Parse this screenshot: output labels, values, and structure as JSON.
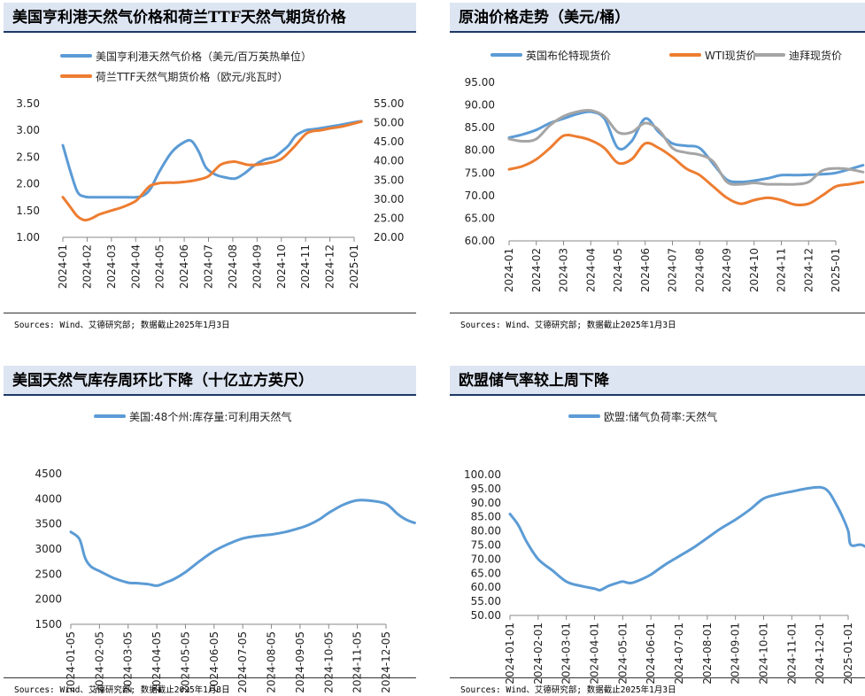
{
  "panels": [
    {
      "title": "美国亨利港天然气价格和荷兰TTF天然气期货价格",
      "source": "Sources: Wind、艾德研究部; 数据截止2025年1月3日"
    },
    {
      "title": "原油价格走势（美元/桶）",
      "source": "Sources: Wind、艾德研究部; 数据截止2025年1月3日"
    },
    {
      "title": "美国天然气库存周环比下降（十亿立方英尺）",
      "source": "Sources: Wind、艾德研究部; 数据截止2025年1月3日"
    },
    {
      "title": "欧盟储气率较上周下降",
      "source": "Sources: Wind、艾德研究部; 数据截止2025年1月3日"
    }
  ],
  "chart_data": [
    {
      "type": "line",
      "title": "美国亨利港天然气价格和荷兰TTF天然气期货价格",
      "categories": [
        "2024-01",
        "2024-02",
        "2024-03",
        "2024-04",
        "2024-05",
        "2024-06",
        "2024-07",
        "2024-08",
        "2024-09",
        "2024-10",
        "2024-11",
        "2024-12",
        "2025-01"
      ],
      "y_left": {
        "ylim": [
          1.0,
          3.5
        ],
        "ticks": [
          "1.00",
          "1.50",
          "2.00",
          "2.50",
          "3.00",
          "3.50"
        ]
      },
      "y_right": {
        "ylim": [
          20.0,
          55.0
        ],
        "ticks": [
          "20.00",
          "25.00",
          "30.00",
          "35.00",
          "40.00",
          "45.00",
          "50.00",
          "55.00"
        ]
      },
      "legend_position": "top-left",
      "series": [
        {
          "name": "美国亨利港天然气价格（美元/百万英热单位）",
          "axis": "left",
          "color": "#5b9bd5",
          "x": [
            0,
            0.3,
            0.6,
            0.9,
            1.2,
            1.5,
            2,
            2.5,
            3,
            3.3,
            3.6,
            4,
            4.5,
            5,
            5.3,
            5.6,
            5.9,
            6.3,
            6.7,
            7.1,
            7.5,
            7.9,
            8.3,
            8.7,
            9,
            9.3,
            9.6,
            10,
            10.3,
            10.6,
            11,
            11.4,
            12,
            12.3
          ],
          "values": [
            2.72,
            2.25,
            1.85,
            1.76,
            1.75,
            1.75,
            1.75,
            1.75,
            1.75,
            1.78,
            1.9,
            2.25,
            2.6,
            2.78,
            2.8,
            2.6,
            2.3,
            2.17,
            2.12,
            2.1,
            2.2,
            2.35,
            2.45,
            2.5,
            2.6,
            2.72,
            2.9,
            3.0,
            3.02,
            3.04,
            3.07,
            3.1,
            3.15,
            3.17
          ]
        },
        {
          "name": "荷兰TTF天然气期货价格（欧元/兆瓦时）",
          "axis": "right",
          "color": "#ed7d31",
          "x": [
            0,
            0.3,
            0.6,
            0.9,
            1.2,
            1.5,
            2,
            2.5,
            3,
            3.3,
            3.6,
            4,
            4.3,
            4.6,
            5,
            5.5,
            6,
            6.5,
            7,
            7.3,
            7.6,
            8,
            8.5,
            9,
            9.5,
            10,
            10.3,
            10.6,
            11,
            11.5,
            12,
            12.3
          ],
          "values": [
            30.5,
            28,
            25.5,
            24.5,
            25,
            26,
            27,
            28,
            29.5,
            31.5,
            33.5,
            34.2,
            34.3,
            34.3,
            34.5,
            35,
            36,
            39,
            39.8,
            39.5,
            39,
            39,
            39.5,
            40.5,
            43.5,
            47,
            47.8,
            48,
            48.5,
            49,
            49.8,
            50.3
          ]
        }
      ]
    },
    {
      "type": "line",
      "title": "原油价格走势（美元/桶）",
      "categories": [
        "2024-01",
        "2024-02",
        "2024-03",
        "2024-04",
        "2024-05",
        "2024-06",
        "2024-07",
        "2024-08",
        "2024-09",
        "2024-10",
        "2024-11",
        "2024-12",
        "2025-01"
      ],
      "ylim": [
        60.0,
        95.0
      ],
      "yticks": [
        "60.00",
        "65.00",
        "70.00",
        "75.00",
        "80.00",
        "85.00",
        "90.00",
        "95.00"
      ],
      "legend_position": "top",
      "series": [
        {
          "name": "英国布伦特现货价",
          "color": "#5b9bd5",
          "x": [
            0,
            0.5,
            1,
            1.5,
            2,
            2.5,
            3,
            3.5,
            4,
            4.5,
            5,
            5.5,
            6,
            6.5,
            7,
            7.5,
            8,
            8.5,
            9,
            9.5,
            10,
            10.5,
            11,
            11.5,
            12,
            12.5,
            13
          ],
          "values": [
            82.8,
            83.5,
            84.5,
            86,
            87,
            88,
            88.5,
            87,
            80.5,
            82,
            87,
            84,
            81.5,
            81,
            80.5,
            77,
            73.5,
            73,
            73.3,
            73.8,
            74.5,
            74.5,
            74.6,
            74.7,
            75,
            75.8,
            76.7
          ]
        },
        {
          "name": "WTI现货价",
          "color": "#ed7d31",
          "x": [
            0,
            0.5,
            1,
            1.5,
            2,
            2.5,
            3,
            3.5,
            4,
            4.5,
            5,
            5.5,
            6,
            6.5,
            7,
            7.5,
            8,
            8.5,
            9,
            9.5,
            10,
            10.5,
            11,
            11.5,
            12,
            12.5,
            13
          ],
          "values": [
            75.8,
            76.5,
            78,
            80.5,
            83.2,
            83,
            82.2,
            80.5,
            77.2,
            78,
            81.5,
            80.5,
            78.5,
            76,
            74.5,
            72,
            69.5,
            68.2,
            69,
            69.5,
            69,
            68,
            68.2,
            70,
            72,
            72.5,
            73
          ]
        },
        {
          "name": "迪拜现货价",
          "color": "#a5a5a5",
          "x": [
            0,
            0.5,
            1,
            1.5,
            2,
            2.5,
            3,
            3.5,
            4,
            4.5,
            5,
            5.5,
            6,
            6.5,
            7,
            7.5,
            8,
            8.5,
            9,
            9.5,
            10,
            10.5,
            11,
            11.5,
            12,
            12.5,
            13
          ],
          "values": [
            82.5,
            82,
            82.5,
            85.5,
            87.5,
            88.5,
            88.8,
            87.5,
            84,
            84,
            86,
            84.5,
            80.5,
            79.5,
            79,
            77.5,
            73,
            72.5,
            72.8,
            72.5,
            72.5,
            72.5,
            73,
            75.5,
            76,
            75.8,
            75.2
          ]
        }
      ]
    },
    {
      "type": "line",
      "title": "美国天然气库存周环比下降（十亿立方英尺）",
      "categories": [
        "2024-01-05",
        "2024-02-05",
        "2024-03-05",
        "2024-04-05",
        "2024-05-05",
        "2024-06-05",
        "2024-07-05",
        "2024-08-05",
        "2024-09-05",
        "2024-10-05",
        "2024-11-05",
        "2024-12-05"
      ],
      "ylim": [
        1500,
        4500
      ],
      "yticks": [
        "1500",
        "2000",
        "2500",
        "3000",
        "3500",
        "4000",
        "4500"
      ],
      "legend_position": "top",
      "series": [
        {
          "name": "美国:48个州:库存量:可利用天然气",
          "color": "#5b9bd5",
          "x": [
            0,
            0.3,
            0.5,
            0.7,
            1,
            1.5,
            2,
            2.3,
            2.7,
            3,
            3.3,
            3.6,
            4,
            4.5,
            5,
            5.5,
            6,
            6.5,
            7,
            7.5,
            8,
            8.3,
            8.7,
            9,
            9.5,
            10,
            10.5,
            11,
            11.4,
            11.6,
            11.8,
            12
          ],
          "values": [
            3340,
            3200,
            2820,
            2650,
            2560,
            2420,
            2330,
            2320,
            2300,
            2270,
            2330,
            2400,
            2540,
            2760,
            2960,
            3100,
            3210,
            3260,
            3290,
            3340,
            3420,
            3480,
            3600,
            3720,
            3880,
            3970,
            3960,
            3900,
            3700,
            3620,
            3560,
            3520
          ]
        }
      ]
    },
    {
      "type": "line",
      "title": "欧盟储气率较上周下降",
      "categories": [
        "2024-01-01",
        "2024-02-01",
        "2024-03-01",
        "2024-04-01",
        "2024-05-01",
        "2024-06-01",
        "2024-07-01",
        "2024-08-01",
        "2024-09-01",
        "2024-10-01",
        "2024-11-01",
        "2024-12-01",
        "2025-01-01"
      ],
      "ylim": [
        50.0,
        100.0
      ],
      "yticks": [
        "50.00",
        "55.00",
        "60.00",
        "65.00",
        "70.00",
        "75.00",
        "80.00",
        "85.00",
        "90.00",
        "95.00",
        "100.00"
      ],
      "legend_position": "top",
      "series": [
        {
          "name": "欧盟:储气负荷率:天然气",
          "color": "#5b9bd5",
          "x": [
            0,
            0.3,
            0.6,
            1,
            1.5,
            2,
            2.5,
            3,
            3.2,
            3.5,
            3.8,
            4,
            4.3,
            4.7,
            5,
            5.5,
            6,
            6.5,
            7,
            7.5,
            8,
            8.5,
            9,
            9.5,
            10,
            10.5,
            11,
            11.3,
            11.6,
            11.8,
            12,
            12.1,
            12.5,
            13
          ],
          "values": [
            86,
            82,
            76,
            70,
            66,
            62,
            60.5,
            59.5,
            59,
            60.5,
            61.5,
            62,
            61.5,
            63,
            64.5,
            68,
            71,
            74,
            77.5,
            81,
            84,
            87.5,
            91.5,
            93,
            94,
            95,
            95.5,
            94,
            89,
            85,
            80,
            75,
            75,
            71.5
          ]
        }
      ]
    }
  ]
}
